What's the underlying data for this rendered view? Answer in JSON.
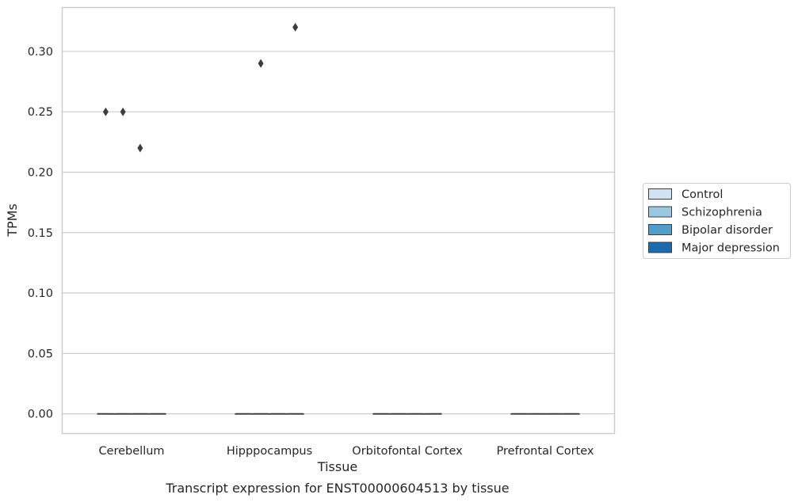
{
  "chart_data": {
    "type": "box",
    "xlabel": "Tissue",
    "ylabel": "TPMs",
    "caption": "Transcript expression for ENST00000604513 by tissue",
    "categories": [
      "Cerebellum",
      "Hipppocampus",
      "Orbitofontal Cortex",
      "Prefrontal Cortex"
    ],
    "ylim": [
      -0.016,
      0.336
    ],
    "yticks": [
      0.0,
      0.05,
      0.1,
      0.15,
      0.2,
      0.25,
      0.3
    ],
    "ytick_labels": [
      "0.00",
      "0.05",
      "0.10",
      "0.15",
      "0.20",
      "0.25",
      "0.30"
    ],
    "grid": "y",
    "legend_position": "right",
    "series": [
      {
        "name": "Control",
        "color": "#d1e2f2",
        "boxes": [
          {
            "category": "Cerebellum",
            "q1": 0,
            "median": 0,
            "q3": 0,
            "whisker_low": 0,
            "whisker_high": 0,
            "outliers": [
              0.25
            ]
          },
          {
            "category": "Hipppocampus",
            "q1": 0,
            "median": 0,
            "q3": 0,
            "whisker_low": 0,
            "whisker_high": 0,
            "outliers": []
          },
          {
            "category": "Orbitofontal Cortex",
            "q1": 0,
            "median": 0,
            "q3": 0,
            "whisker_low": 0,
            "whisker_high": 0,
            "outliers": []
          },
          {
            "category": "Prefrontal Cortex",
            "q1": 0,
            "median": 0,
            "q3": 0,
            "whisker_low": 0,
            "whisker_high": 0,
            "outliers": []
          }
        ]
      },
      {
        "name": "Schizophrenia",
        "color": "#9ac8e0",
        "boxes": [
          {
            "category": "Cerebellum",
            "q1": 0,
            "median": 0,
            "q3": 0,
            "whisker_low": 0,
            "whisker_high": 0,
            "outliers": [
              0.25
            ]
          },
          {
            "category": "Hipppocampus",
            "q1": 0,
            "median": 0,
            "q3": 0,
            "whisker_low": 0,
            "whisker_high": 0,
            "outliers": [
              0.29
            ]
          },
          {
            "category": "Orbitofontal Cortex",
            "q1": 0,
            "median": 0,
            "q3": 0,
            "whisker_low": 0,
            "whisker_high": 0,
            "outliers": []
          },
          {
            "category": "Prefrontal Cortex",
            "q1": 0,
            "median": 0,
            "q3": 0,
            "whisker_low": 0,
            "whisker_high": 0,
            "outliers": []
          }
        ]
      },
      {
        "name": "Bipolar disorder",
        "color": "#529dcc",
        "boxes": [
          {
            "category": "Cerebellum",
            "q1": 0,
            "median": 0,
            "q3": 0,
            "whisker_low": 0,
            "whisker_high": 0,
            "outliers": [
              0.22
            ]
          },
          {
            "category": "Hipppocampus",
            "q1": 0,
            "median": 0,
            "q3": 0,
            "whisker_low": 0,
            "whisker_high": 0,
            "outliers": []
          },
          {
            "category": "Orbitofontal Cortex",
            "q1": 0,
            "median": 0,
            "q3": 0,
            "whisker_low": 0,
            "whisker_high": 0,
            "outliers": []
          },
          {
            "category": "Prefrontal Cortex",
            "q1": 0,
            "median": 0,
            "q3": 0,
            "whisker_low": 0,
            "whisker_high": 0,
            "outliers": []
          }
        ]
      },
      {
        "name": "Major depression",
        "color": "#1c6aaf",
        "boxes": [
          {
            "category": "Cerebellum",
            "q1": 0,
            "median": 0,
            "q3": 0,
            "whisker_low": 0,
            "whisker_high": 0,
            "outliers": []
          },
          {
            "category": "Hipppocampus",
            "q1": 0,
            "median": 0,
            "q3": 0,
            "whisker_low": 0,
            "whisker_high": 0,
            "outliers": [
              0.32
            ]
          },
          {
            "category": "Orbitofontal Cortex",
            "q1": 0,
            "median": 0,
            "q3": 0,
            "whisker_low": 0,
            "whisker_high": 0,
            "outliers": []
          },
          {
            "category": "Prefrontal Cortex",
            "q1": 0,
            "median": 0,
            "q3": 0,
            "whisker_low": 0,
            "whisker_high": 0,
            "outliers": []
          }
        ]
      }
    ]
  },
  "colors": {
    "grid": "#cccccc",
    "frame": "#cccccc",
    "box_edge": "#3d3d3d",
    "outlier": "#3d3d3d"
  }
}
